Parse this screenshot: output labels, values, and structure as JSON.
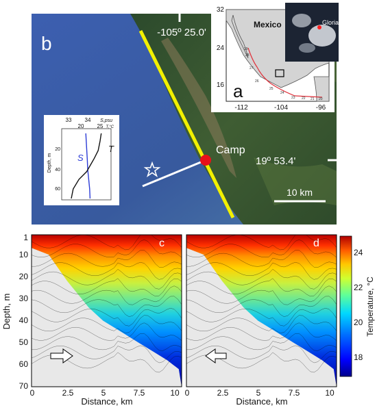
{
  "panel_b": {
    "label": "b",
    "lon_label": "-105º 25.0'",
    "lat_label": "19º 53.4'",
    "camp_label": "Camp",
    "scale_label": "10 km"
  },
  "panel_a": {
    "label": "a",
    "country_label": "Mexico",
    "storm_label": "Gloria",
    "y_ticks": [
      "32",
      "24",
      "16"
    ],
    "x_ticks": [
      "-112",
      "-104",
      "-96"
    ],
    "track_numbers": [
      "29",
      "28",
      "27",
      "26",
      "25",
      "24",
      "23",
      "22",
      "21",
      "20"
    ]
  },
  "profile_inset": {
    "top_ticks_s": [
      "33",
      "34"
    ],
    "s_unit": "S,psu",
    "top_ticks_t": [
      "20",
      "25"
    ],
    "t_unit": "T,°C",
    "y_label": "Depth, m",
    "y_ticks": [
      "20",
      "40",
      "60"
    ],
    "s_curve_label": "S",
    "t_curve_label": "T"
  },
  "section_c": {
    "label": "c"
  },
  "section_d": {
    "label": "d"
  },
  "sections": {
    "y_label": "Depth, m",
    "x_label": "Distance, km",
    "y_ticks": [
      "1",
      "10",
      "20",
      "30",
      "40",
      "50",
      "60",
      "70"
    ],
    "x_ticks": [
      "0",
      "2.5",
      "5",
      "7.5",
      "10"
    ]
  },
  "colorbar": {
    "label": "Temperature, °C",
    "ticks": [
      "24",
      "22",
      "20",
      "18"
    ]
  },
  "chart_data": [
    {
      "type": "heatmap",
      "panel": "c",
      "xlabel": "Distance, km",
      "ylabel": "Depth, m",
      "xlim": [
        0,
        10.5
      ],
      "ylim": [
        70,
        1
      ],
      "bottom_profile": {
        "distance_km": [
          1.2,
          2.5,
          4,
          5,
          6,
          7.5,
          8.5,
          9.5,
          10.3
        ],
        "depth_m": [
          10,
          22,
          34,
          40,
          44,
          50,
          54,
          58,
          62
        ]
      },
      "temperature_range_c": [
        16.5,
        25
      ]
    },
    {
      "type": "heatmap",
      "panel": "d",
      "xlabel": "Distance, km",
      "ylabel": "Depth, m",
      "xlim": [
        0,
        10.5
      ],
      "ylim": [
        70,
        1
      ],
      "bottom_profile": {
        "distance_km": [
          1.2,
          2.5,
          4,
          5,
          6,
          7.5,
          8.5,
          9.5,
          10.3
        ],
        "depth_m": [
          10,
          22,
          34,
          40,
          44,
          50,
          54,
          58,
          62
        ]
      },
      "temperature_range_c": [
        16.5,
        25
      ]
    },
    {
      "type": "line",
      "panel": "profile_inset",
      "series": [
        {
          "name": "S",
          "x_psu": [
            33.9,
            33.92,
            33.95,
            33.98,
            34.0,
            34.05,
            34.1,
            34.12
          ],
          "depth_m": [
            2,
            10,
            20,
            30,
            40,
            50,
            60,
            70
          ]
        },
        {
          "name": "T",
          "x_c": [
            25.3,
            25.0,
            24.5,
            23.5,
            22.5,
            21.5,
            19.5,
            18.0,
            17.5
          ],
          "depth_m": [
            2,
            10,
            20,
            28,
            35,
            42,
            50,
            60,
            70
          ]
        }
      ]
    }
  ]
}
